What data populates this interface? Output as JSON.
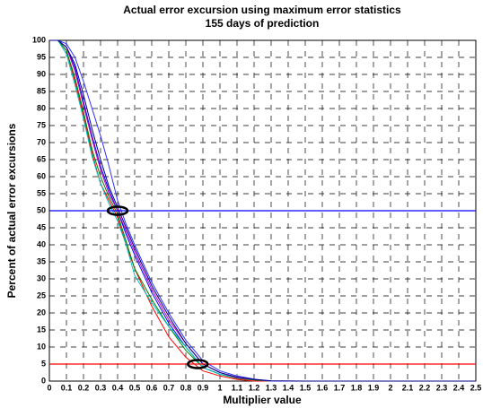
{
  "chart_data": {
    "type": "line",
    "title": "Actual error excursion using maximum error statistics",
    "subtitle": "155 days of prediction",
    "x_label": "Multiplier value",
    "y_label": "Percent of actual error excursions",
    "x": [
      0,
      0.05,
      0.1,
      0.15,
      0.2,
      0.25,
      0.3,
      0.35,
      0.4,
      0.45,
      0.5,
      0.6,
      0.7,
      0.8,
      0.9,
      1.0,
      1.1,
      1.2,
      1.3,
      1.5,
      2.0,
      2.5
    ],
    "series": [
      {
        "color": "#0000ff",
        "values": [
          100,
          100,
          98,
          92,
          82,
          72,
          63,
          56,
          50,
          43,
          37,
          26,
          17,
          10,
          4,
          2,
          1,
          0.5,
          0,
          0,
          0,
          0
        ]
      },
      {
        "color": "#ff0000",
        "values": [
          100,
          100,
          97,
          88,
          78,
          67,
          58,
          53,
          48,
          40,
          33,
          22,
          13,
          7,
          3,
          1.5,
          0.5,
          0,
          0,
          0,
          0,
          0
        ]
      },
      {
        "color": "#008000",
        "values": [
          100,
          100,
          97,
          89,
          79,
          68,
          60,
          54,
          49,
          41,
          33,
          24,
          16,
          9,
          4,
          2,
          0.8,
          0.3,
          0,
          0,
          0,
          0
        ]
      },
      {
        "color": "#00bfbf",
        "values": [
          100,
          100,
          96,
          87,
          77,
          66,
          58,
          52,
          47,
          40,
          31,
          23,
          16,
          10,
          4,
          2,
          1,
          0.5,
          0,
          0,
          0,
          0
        ]
      },
      {
        "color": "#bf00bf",
        "values": [
          100,
          100,
          98,
          91,
          81,
          71,
          62,
          55,
          50,
          44,
          38,
          27,
          18,
          11,
          5,
          2.5,
          1,
          0.5,
          0,
          0,
          0,
          0
        ]
      },
      {
        "color": "#3030ff",
        "values": [
          100,
          100,
          99,
          95,
          88,
          80,
          72,
          63,
          53,
          46,
          40,
          29,
          20,
          12,
          6,
          3,
          1.5,
          0.6,
          0,
          0,
          0,
          0
        ]
      },
      {
        "color": "#000080",
        "values": [
          100,
          100,
          98,
          93,
          84,
          74,
          65,
          57,
          51,
          45,
          39,
          28,
          19,
          11,
          5,
          2.5,
          1.2,
          0.5,
          0.1,
          0,
          0,
          0
        ]
      }
    ],
    "hlines": [
      {
        "value": 50,
        "color": "#0000ff"
      },
      {
        "value": 5,
        "color": "#ff0000"
      }
    ],
    "highlights": [
      {
        "x": 0.4,
        "y": 50
      },
      {
        "x": 0.87,
        "y": 5
      }
    ],
    "xlim": [
      0,
      2.5
    ],
    "ylim": [
      0,
      100
    ],
    "xticks": [
      0,
      0.1,
      0.2,
      0.3,
      0.4,
      0.5,
      0.6,
      0.7,
      0.8,
      0.9,
      1,
      1.1,
      1.2,
      1.3,
      1.4,
      1.5,
      1.6,
      1.7,
      1.8,
      1.9,
      2,
      2.1,
      2.2,
      2.3,
      2.4,
      2.5
    ],
    "yticks": [
      0,
      5,
      10,
      15,
      20,
      25,
      30,
      35,
      40,
      45,
      50,
      55,
      60,
      65,
      70,
      75,
      80,
      85,
      90,
      95,
      100
    ],
    "grid": true
  }
}
